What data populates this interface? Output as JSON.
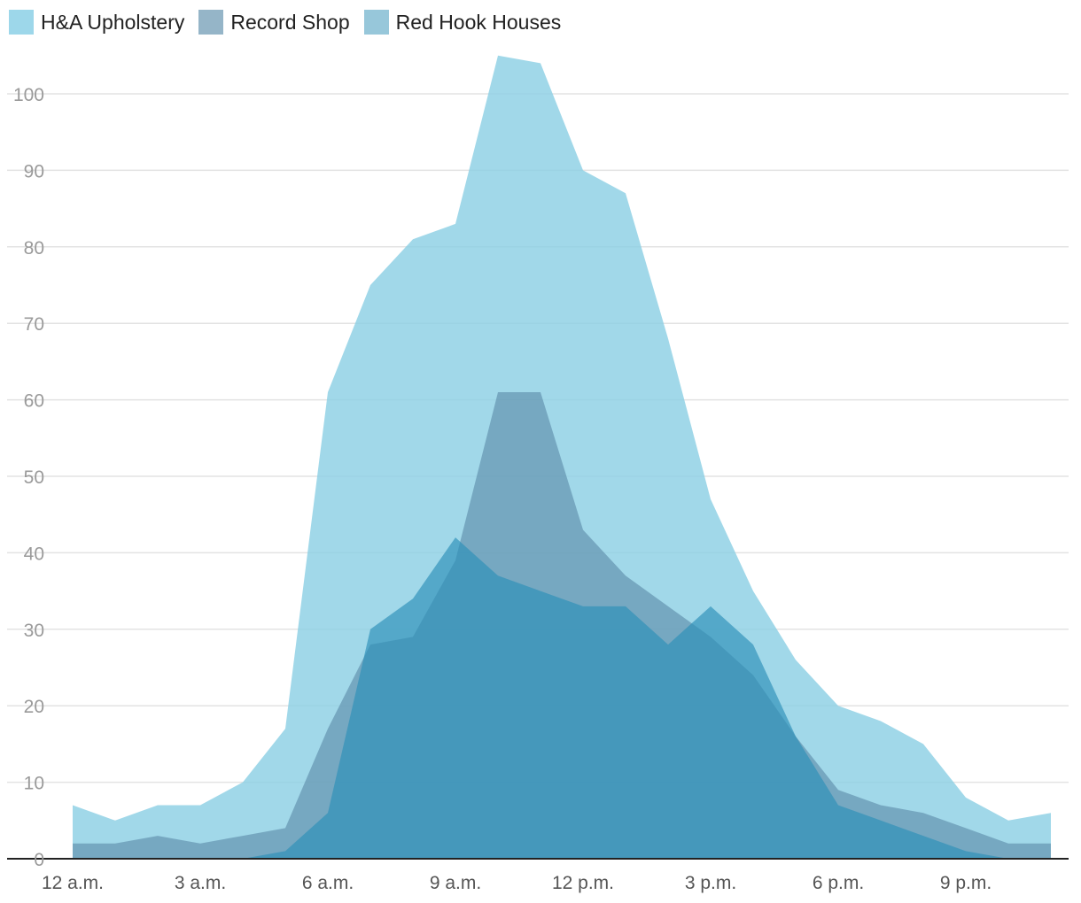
{
  "chart_data": {
    "type": "area",
    "categories": [
      "12 a.m.",
      "1 a.m.",
      "2 a.m.",
      "3 a.m.",
      "4 a.m.",
      "5 a.m.",
      "6 a.m.",
      "7 a.m.",
      "8 a.m.",
      "9 a.m.",
      "10 a.m.",
      "11 a.m.",
      "12 p.m.",
      "1 p.m.",
      "2 p.m.",
      "3 p.m.",
      "4 p.m.",
      "5 p.m.",
      "6 p.m.",
      "7 p.m.",
      "8 p.m.",
      "9 p.m.",
      "10 p.m.",
      "11 p.m."
    ],
    "xtick_labels": [
      "12 a.m.",
      "3 a.m.",
      "6 a.m.",
      "9 a.m.",
      "12 p.m.",
      "3 p.m.",
      "6 p.m.",
      "9 p.m."
    ],
    "ylim": [
      0,
      105
    ],
    "yticks": [
      0,
      10,
      20,
      30,
      40,
      50,
      60,
      70,
      80,
      90,
      100
    ],
    "grid": true,
    "legend_position": "top-left",
    "series": [
      {
        "name": "H&A Upholstery",
        "color": "#8ccfe4",
        "opacity": 0.82,
        "values": [
          7,
          5,
          7,
          7,
          10,
          17,
          61,
          75,
          81,
          83,
          105,
          104,
          90,
          87,
          68,
          47,
          35,
          26,
          20,
          18,
          15,
          8,
          5,
          6
        ]
      },
      {
        "name": "Record Shop",
        "color": "#5a88a6",
        "opacity": 0.6,
        "values": [
          2,
          2,
          3,
          2,
          3,
          4,
          17,
          28,
          29,
          39,
          61,
          61,
          43,
          37,
          33,
          29,
          24,
          16,
          9,
          7,
          6,
          4,
          2,
          2
        ]
      },
      {
        "name": "Red Hook Houses",
        "color": "#2b8fb8",
        "opacity": 0.65,
        "values": [
          0,
          0,
          0,
          0,
          0,
          1,
          6,
          30,
          34,
          42,
          37,
          35,
          33,
          33,
          28,
          33,
          28,
          16,
          7,
          5,
          3,
          1,
          0,
          0
        ]
      }
    ]
  }
}
